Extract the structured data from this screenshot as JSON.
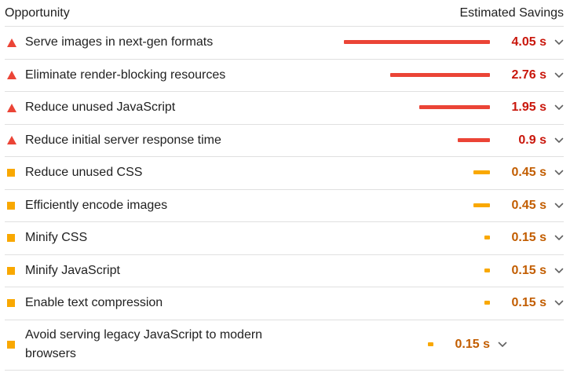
{
  "header": {
    "left": "Opportunity",
    "right": "Estimated Savings"
  },
  "colors": {
    "fail": "#eb4436",
    "average": "#f9a800",
    "fail_text": "#c9170c",
    "average_text": "#c25d00"
  },
  "rows": [
    {
      "title": "Serve images in next-gen formats",
      "savings": "4.05 s",
      "value": 4.05,
      "severity": "fail",
      "icon": "red-triangle-icon"
    },
    {
      "title": "Eliminate render-blocking resources",
      "savings": "2.76 s",
      "value": 2.76,
      "severity": "fail",
      "icon": "red-triangle-icon"
    },
    {
      "title": "Reduce unused JavaScript",
      "savings": "1.95 s",
      "value": 1.95,
      "severity": "fail",
      "icon": "red-triangle-icon"
    },
    {
      "title": "Reduce initial server response time",
      "savings": "0.9 s",
      "value": 0.9,
      "severity": "fail",
      "icon": "red-triangle-icon"
    },
    {
      "title": "Reduce unused CSS",
      "savings": "0.45 s",
      "value": 0.45,
      "severity": "average",
      "icon": "orange-square-icon"
    },
    {
      "title": "Efficiently encode images",
      "savings": "0.45 s",
      "value": 0.45,
      "severity": "average",
      "icon": "orange-square-icon"
    },
    {
      "title": "Minify CSS",
      "savings": "0.15 s",
      "value": 0.15,
      "severity": "average",
      "icon": "orange-square-icon"
    },
    {
      "title": "Minify JavaScript",
      "savings": "0.15 s",
      "value": 0.15,
      "severity": "average",
      "icon": "orange-square-icon"
    },
    {
      "title": "Enable text compression",
      "savings": "0.15 s",
      "value": 0.15,
      "severity": "average",
      "icon": "orange-square-icon"
    },
    {
      "title": "Avoid serving legacy JavaScript to modern browsers",
      "savings": "0.15 s",
      "value": 0.15,
      "severity": "average",
      "icon": "orange-square-icon"
    }
  ],
  "chevron_icon": "chevron-down-icon"
}
